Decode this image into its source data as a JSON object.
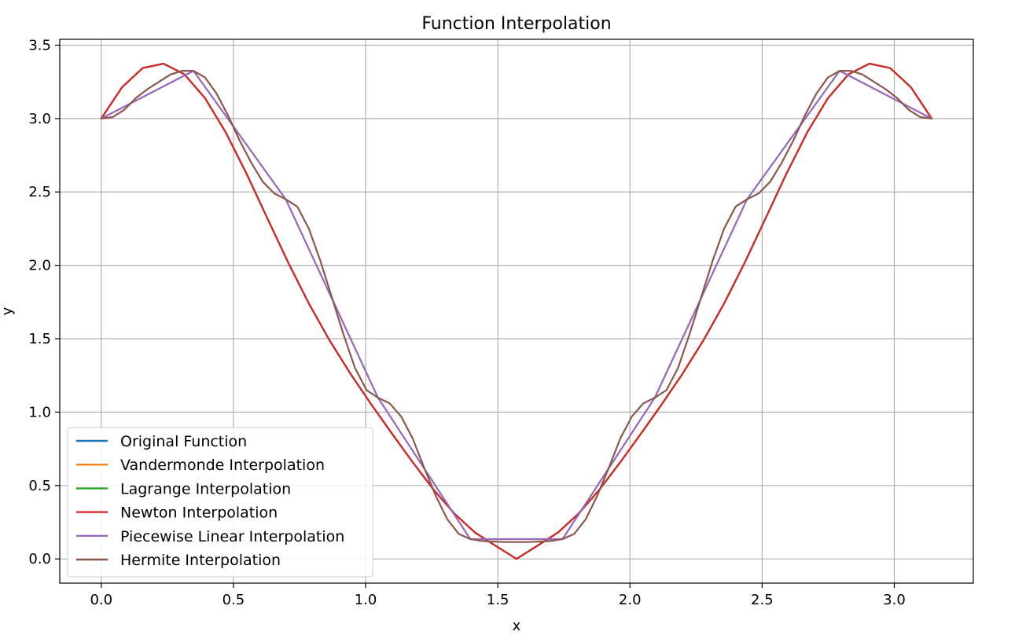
{
  "chart_data": {
    "type": "line",
    "title": "Function Interpolation",
    "xlabel": "x",
    "ylabel": "y",
    "xlim": [
      -0.157,
      3.299
    ],
    "ylim": [
      -0.165,
      3.54
    ],
    "x_ticks": [
      0.0,
      0.5,
      1.0,
      1.5,
      2.0,
      2.5,
      3.0
    ],
    "x_tick_labels": [
      "0.0",
      "0.5",
      "1.0",
      "1.5",
      "2.0",
      "2.5",
      "3.0"
    ],
    "y_ticks": [
      0.0,
      0.5,
      1.0,
      1.5,
      2.0,
      2.5,
      3.0,
      3.5
    ],
    "y_tick_labels": [
      "0.0",
      "0.5",
      "1.0",
      "1.5",
      "2.0",
      "2.5",
      "3.0",
      "3.5"
    ],
    "grid": true,
    "legend_position": "lower-left",
    "series": [
      {
        "name": "Original Function",
        "color": "#1f77b4",
        "x": [
          0.0,
          0.0785,
          0.157,
          0.2356,
          0.3142,
          0.3927,
          0.4712,
          0.5498,
          0.6283,
          0.7069,
          0.7854,
          0.8639,
          0.9425,
          1.021,
          1.0996,
          1.1781,
          1.2566,
          1.3352,
          1.4137,
          1.4923,
          1.5708,
          1.6493,
          1.7279,
          1.8064,
          1.885,
          1.9635,
          2.042,
          2.1206,
          2.1991,
          2.2777,
          2.3562,
          2.4347,
          2.5133,
          2.5918,
          2.6704,
          2.7489,
          2.8274,
          2.906,
          2.9845,
          3.0631,
          3.1416
        ],
        "y": [
          3.0,
          3.213,
          3.344,
          3.374,
          3.302,
          3.139,
          2.905,
          2.624,
          2.321,
          2.02,
          1.74,
          1.488,
          1.262,
          1.054,
          0.854,
          0.659,
          0.473,
          0.31,
          0.18,
          0.089,
          0.0,
          0.089,
          0.18,
          0.31,
          0.473,
          0.659,
          0.854,
          1.054,
          1.262,
          1.488,
          1.74,
          2.02,
          2.321,
          2.624,
          2.905,
          3.139,
          3.302,
          3.374,
          3.344,
          3.213,
          3.0
        ]
      },
      {
        "name": "Vandermonde Interpolation",
        "color": "#ff7f0e",
        "x": [
          0.0,
          0.0785,
          0.157,
          0.2356,
          0.3142,
          0.3927,
          0.4712,
          0.5498,
          0.6283,
          0.7069,
          0.7854,
          0.8639,
          0.9425,
          1.021,
          1.0996,
          1.1781,
          1.2566,
          1.3352,
          1.4137,
          1.4923,
          1.5708,
          1.6493,
          1.7279,
          1.8064,
          1.885,
          1.9635,
          2.042,
          2.1206,
          2.1991,
          2.2777,
          2.3562,
          2.4347,
          2.5133,
          2.5918,
          2.6704,
          2.7489,
          2.8274,
          2.906,
          2.9845,
          3.0631,
          3.1416
        ],
        "y": [
          3.0,
          3.213,
          3.344,
          3.374,
          3.302,
          3.139,
          2.905,
          2.624,
          2.321,
          2.02,
          1.74,
          1.488,
          1.262,
          1.054,
          0.854,
          0.659,
          0.473,
          0.31,
          0.18,
          0.089,
          0.0,
          0.089,
          0.18,
          0.31,
          0.473,
          0.659,
          0.854,
          1.054,
          1.262,
          1.488,
          1.74,
          2.02,
          2.321,
          2.624,
          2.905,
          3.139,
          3.302,
          3.374,
          3.344,
          3.213,
          3.0
        ]
      },
      {
        "name": "Lagrange Interpolation",
        "color": "#2ca02c",
        "x": [
          0.0,
          0.0785,
          0.157,
          0.2356,
          0.3142,
          0.3927,
          0.4712,
          0.5498,
          0.6283,
          0.7069,
          0.7854,
          0.8639,
          0.9425,
          1.021,
          1.0996,
          1.1781,
          1.2566,
          1.3352,
          1.4137,
          1.4923,
          1.5708,
          1.6493,
          1.7279,
          1.8064,
          1.885,
          1.9635,
          2.042,
          2.1206,
          2.1991,
          2.2777,
          2.3562,
          2.4347,
          2.5133,
          2.5918,
          2.6704,
          2.7489,
          2.8274,
          2.906,
          2.9845,
          3.0631,
          3.1416
        ],
        "y": [
          3.0,
          3.213,
          3.344,
          3.374,
          3.302,
          3.139,
          2.905,
          2.624,
          2.321,
          2.02,
          1.74,
          1.488,
          1.262,
          1.054,
          0.854,
          0.659,
          0.473,
          0.31,
          0.18,
          0.089,
          0.0,
          0.089,
          0.18,
          0.31,
          0.473,
          0.659,
          0.854,
          1.054,
          1.262,
          1.488,
          1.74,
          2.02,
          2.321,
          2.624,
          2.905,
          3.139,
          3.302,
          3.374,
          3.344,
          3.213,
          3.0
        ]
      },
      {
        "name": "Newton Interpolation",
        "color": "#d62728",
        "x": [
          0.0,
          0.0785,
          0.157,
          0.2356,
          0.3142,
          0.3927,
          0.4712,
          0.5498,
          0.6283,
          0.7069,
          0.7854,
          0.8639,
          0.9425,
          1.021,
          1.0996,
          1.1781,
          1.2566,
          1.3352,
          1.4137,
          1.4923,
          1.5708,
          1.6493,
          1.7279,
          1.8064,
          1.885,
          1.9635,
          2.042,
          2.1206,
          2.1991,
          2.2777,
          2.3562,
          2.4347,
          2.5133,
          2.5918,
          2.6704,
          2.7489,
          2.8274,
          2.906,
          2.9845,
          3.0631,
          3.1416
        ],
        "y": [
          3.0,
          3.213,
          3.344,
          3.374,
          3.302,
          3.139,
          2.905,
          2.624,
          2.321,
          2.02,
          1.74,
          1.488,
          1.262,
          1.054,
          0.854,
          0.659,
          0.473,
          0.31,
          0.18,
          0.089,
          0.0,
          0.089,
          0.18,
          0.31,
          0.473,
          0.659,
          0.854,
          1.054,
          1.262,
          1.488,
          1.74,
          2.02,
          2.321,
          2.624,
          2.905,
          3.139,
          3.302,
          3.374,
          3.344,
          3.213,
          3.0
        ]
      },
      {
        "name": "Piecewise Linear Interpolation",
        "color": "#9467bd",
        "x": [
          0.0,
          0.349,
          0.698,
          1.047,
          1.396,
          1.745,
          2.094,
          2.443,
          2.793,
          3.1416
        ],
        "y": [
          3.0,
          3.325,
          2.45,
          1.098,
          0.135,
          0.135,
          1.098,
          2.45,
          3.325,
          3.0
        ]
      },
      {
        "name": "Hermite Interpolation",
        "color": "#8c564b",
        "x": [
          0.0,
          0.0436,
          0.0873,
          0.1309,
          0.1745,
          0.2182,
          0.2618,
          0.3054,
          0.349,
          0.3927,
          0.4363,
          0.4799,
          0.5236,
          0.5672,
          0.6109,
          0.6545,
          0.698,
          0.7417,
          0.7854,
          0.829,
          0.8727,
          0.9163,
          0.96,
          1.0036,
          1.047,
          1.0908,
          1.1345,
          1.1781,
          1.2217,
          1.2654,
          1.309,
          1.3526,
          1.396,
          1.4399,
          1.4835,
          1.5272,
          1.5708,
          1.6144,
          1.6581,
          1.7017,
          1.745,
          1.789,
          1.8326,
          1.8762,
          1.9199,
          1.9635,
          2.0071,
          2.0508,
          2.094,
          2.1381,
          2.1817,
          2.2253,
          2.269,
          2.3126,
          2.3562,
          2.3999,
          2.443,
          2.4871,
          2.5307,
          2.5744,
          2.618,
          2.6616,
          2.7053,
          2.7489,
          2.793,
          2.8362,
          2.8798,
          2.9234,
          2.9671,
          3.0107,
          3.0543,
          3.098,
          3.1416
        ],
        "y": [
          3.0,
          3.01,
          3.06,
          3.14,
          3.2,
          3.25,
          3.3,
          3.325,
          3.325,
          3.28,
          3.17,
          3.02,
          2.85,
          2.7,
          2.57,
          2.49,
          2.45,
          2.4,
          2.25,
          2.03,
          1.78,
          1.53,
          1.3,
          1.15,
          1.098,
          1.06,
          0.97,
          0.82,
          0.62,
          0.43,
          0.27,
          0.17,
          0.135,
          0.122,
          0.118,
          0.115,
          0.115,
          0.115,
          0.118,
          0.122,
          0.135,
          0.17,
          0.27,
          0.43,
          0.62,
          0.82,
          0.97,
          1.06,
          1.098,
          1.15,
          1.3,
          1.53,
          1.78,
          2.03,
          2.25,
          2.4,
          2.45,
          2.49,
          2.57,
          2.7,
          2.85,
          3.02,
          3.17,
          3.28,
          3.325,
          3.325,
          3.3,
          3.25,
          3.2,
          3.14,
          3.06,
          3.01,
          3.0
        ]
      }
    ]
  }
}
